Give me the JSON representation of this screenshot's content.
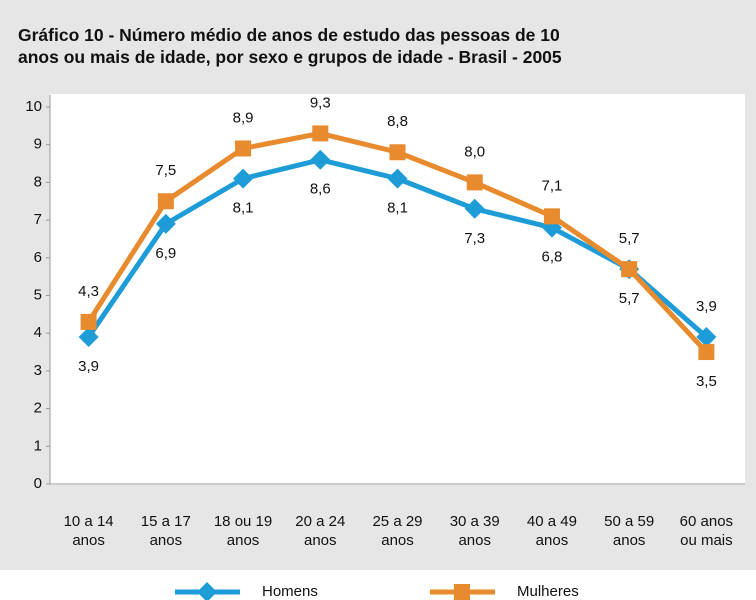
{
  "chart_data": {
    "type": "line",
    "title": "Gráfico 10 - Número médio de anos de estudo das pessoas de 10\nanos ou mais de idade, por sexo e grupos de idade - Brasil - 2005",
    "categories": [
      "10 a 14\nanos",
      "15 a 17\nanos",
      "18 ou 19\nanos",
      "20 a 24\nanos",
      "25 a 29\nanos",
      "30 a 39\nanos",
      "40 a 49\nanos",
      "50 a 59\nanos",
      "60 anos\nou mais"
    ],
    "series": [
      {
        "name": "Homens",
        "color": "#1e9cd7",
        "marker": "diamond",
        "values": [
          3.9,
          6.9,
          8.1,
          8.6,
          8.1,
          7.3,
          6.8,
          5.7,
          3.9
        ],
        "value_labels": [
          "3,9",
          "6,9",
          "8,1",
          "8,6",
          "8,1",
          "7,3",
          "6,8",
          "5,7",
          "3,9"
        ]
      },
      {
        "name": "Mulheres",
        "color": "#e88a2e",
        "marker": "square",
        "values": [
          4.3,
          7.5,
          8.9,
          9.3,
          8.8,
          8.0,
          7.1,
          5.7,
          3.5
        ],
        "value_labels": [
          "4,3",
          "7,5",
          "8,9",
          "9,3",
          "8,8",
          "8,0",
          "7,1",
          "5,7",
          "3,5"
        ]
      }
    ],
    "ylim": [
      0,
      10
    ],
    "yticks": [
      0,
      1,
      2,
      3,
      4,
      5,
      6,
      7,
      8,
      9,
      10
    ],
    "legend": "bottom"
  }
}
